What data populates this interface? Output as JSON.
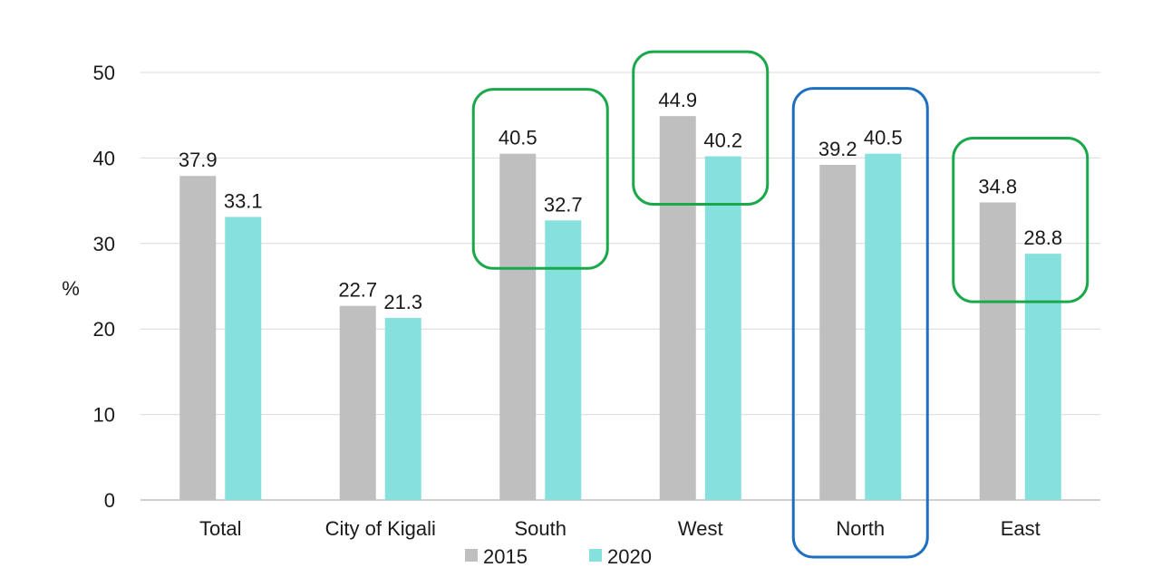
{
  "chart_data": {
    "type": "bar",
    "title": "",
    "xlabel": "",
    "ylabel": "%",
    "ylim": [
      0,
      50
    ],
    "yticks": [
      0,
      10,
      20,
      30,
      40,
      50
    ],
    "grid": true,
    "legend_placement": "bottom-center",
    "categories": [
      "Total",
      "City of Kigali",
      "South",
      "West",
      "North",
      "East"
    ],
    "series": [
      {
        "name": "2015",
        "color": "#bfbfbf",
        "values": [
          37.9,
          22.7,
          40.5,
          44.9,
          39.2,
          34.8
        ]
      },
      {
        "name": "2020",
        "color": "#86e0de",
        "values": [
          33.1,
          21.3,
          32.7,
          40.2,
          40.5,
          28.8
        ]
      }
    ],
    "highlights": [
      {
        "category": "South",
        "color": "#1aa84a"
      },
      {
        "category": "West",
        "color": "#1aa84a"
      },
      {
        "category": "North",
        "color": "#1e6fc0"
      },
      {
        "category": "East",
        "color": "#1aa84a"
      }
    ]
  }
}
